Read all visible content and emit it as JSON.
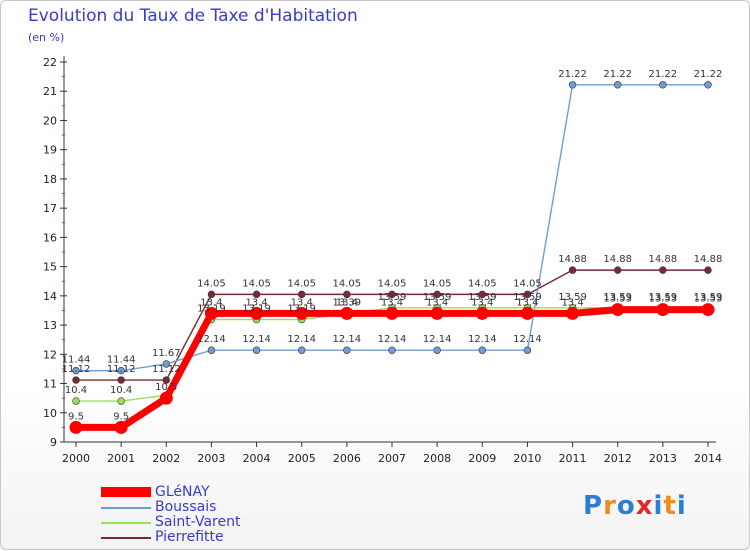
{
  "title": "Evolution du Taux de Taxe d'Habitation",
  "unit_label": "(en %)",
  "logo_text": "Proxiti",
  "chart_data": {
    "type": "line",
    "title": "Evolution du Taux de Taxe d'Habitation",
    "ylabel": "(en %)",
    "xlabel": "",
    "categories": [
      "2000",
      "2001",
      "2002",
      "2003",
      "2004",
      "2005",
      "2006",
      "2007",
      "2008",
      "2009",
      "2010",
      "2011",
      "2012",
      "2013",
      "2014"
    ],
    "ylim": [
      9,
      22
    ],
    "yticks": [
      "9",
      "10",
      "11",
      "12",
      "13",
      "14",
      "15",
      "16",
      "17",
      "18",
      "19",
      "20",
      "21",
      "22"
    ],
    "grid": false,
    "legend_position": "bottom-left",
    "series": [
      {
        "name": "GLéNAY",
        "color": "#ff0000",
        "emphasis": true,
        "values": [
          9.5,
          9.5,
          10.5,
          13.4,
          13.4,
          13.4,
          13.4,
          13.4,
          13.4,
          13.4,
          13.4,
          13.4,
          13.53,
          13.53,
          13.53
        ]
      },
      {
        "name": "Boussais",
        "color": "#6f9ed4",
        "values": [
          11.44,
          11.44,
          11.67,
          12.14,
          12.14,
          12.14,
          12.14,
          12.14,
          12.14,
          12.14,
          12.14,
          21.22,
          21.22,
          21.22,
          21.22
        ],
        "labels": [
          "11.44",
          "11.44",
          "11.67",
          "12.14",
          "12.14",
          "12.14",
          "12.14",
          "12.14",
          "12.14",
          "12.14",
          "12.14",
          "21.22",
          "21.22",
          "21.22",
          "21.22"
        ]
      },
      {
        "name": "Saint-Varent",
        "color": "#99e05a",
        "values": [
          10.4,
          10.4,
          10.6,
          13.19,
          13.19,
          13.19,
          13.39,
          13.59,
          13.59,
          13.59,
          13.59,
          13.59,
          13.59,
          13.59,
          13.59
        ],
        "labels": [
          "10.4",
          "10.4",
          "",
          "13.19",
          "13.19",
          "13.19",
          "13.39",
          "13.59",
          "13.59",
          "13.59",
          "13.59",
          "13.59",
          "13.59",
          "13.59",
          "13.59"
        ]
      },
      {
        "name": "Pierrefitte",
        "color": "#7a2a35",
        "values": [
          11.12,
          11.12,
          11.12,
          14.05,
          14.05,
          14.05,
          14.05,
          14.05,
          14.05,
          14.05,
          14.05,
          14.88,
          14.88,
          14.88,
          14.88
        ],
        "labels": [
          "11.12",
          "11.12",
          "11.12",
          "14.05",
          "14.05",
          "14.05",
          "14.05",
          "14.05",
          "14.05",
          "14.05",
          "14.05",
          "14.88",
          "14.88",
          "14.88",
          "14.88"
        ]
      }
    ],
    "extra_labels": [
      {
        "series": "GLéNAY",
        "labels": [
          "9.5",
          "9.5",
          "10.5",
          "13.4",
          "13.4",
          "13.4",
          "13.4",
          "13.4",
          "13.4",
          "13.4",
          "13.4",
          "13.4",
          "13.53",
          "13.53",
          "13.53"
        ]
      }
    ]
  }
}
